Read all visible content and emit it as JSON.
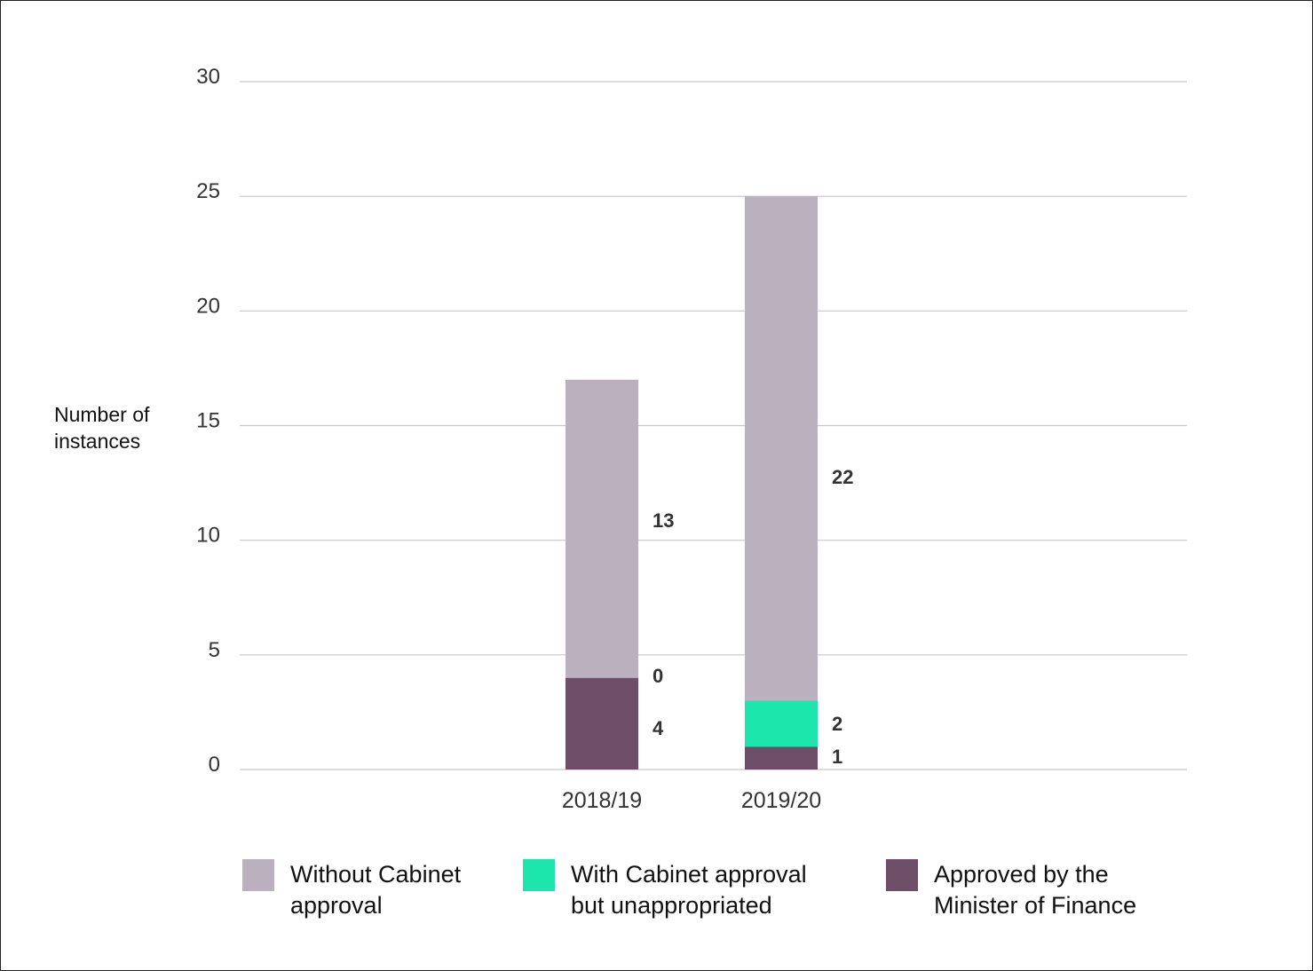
{
  "chart_data": {
    "type": "bar",
    "stacked": true,
    "ylabel": "Number of instances",
    "ylabel_lines": [
      "Number of",
      "instances"
    ],
    "ylim": [
      0,
      30
    ],
    "yticks": [
      0,
      5,
      10,
      15,
      20,
      25,
      30
    ],
    "grid": true,
    "legend_placement": "bottom",
    "categories": [
      "2018/19",
      "2019/20"
    ],
    "series": [
      {
        "name": "Approved by the Minister of Finance",
        "name_lines": [
          "Approved by the",
          "Minister of Finance"
        ],
        "color": "#6e4d66",
        "values": [
          4,
          1
        ]
      },
      {
        "name": "With Cabinet approval but unappropriated",
        "name_lines": [
          "With Cabinet approval",
          "but unappropriated"
        ],
        "color": "#1de6ac",
        "values": [
          0,
          2
        ]
      },
      {
        "name": "Without Cabinet approval",
        "name_lines": [
          "Without Cabinet",
          "approval"
        ],
        "color": "#bbb0bd",
        "values": [
          13,
          22
        ]
      }
    ],
    "legend_order": [
      2,
      1,
      0
    ]
  }
}
